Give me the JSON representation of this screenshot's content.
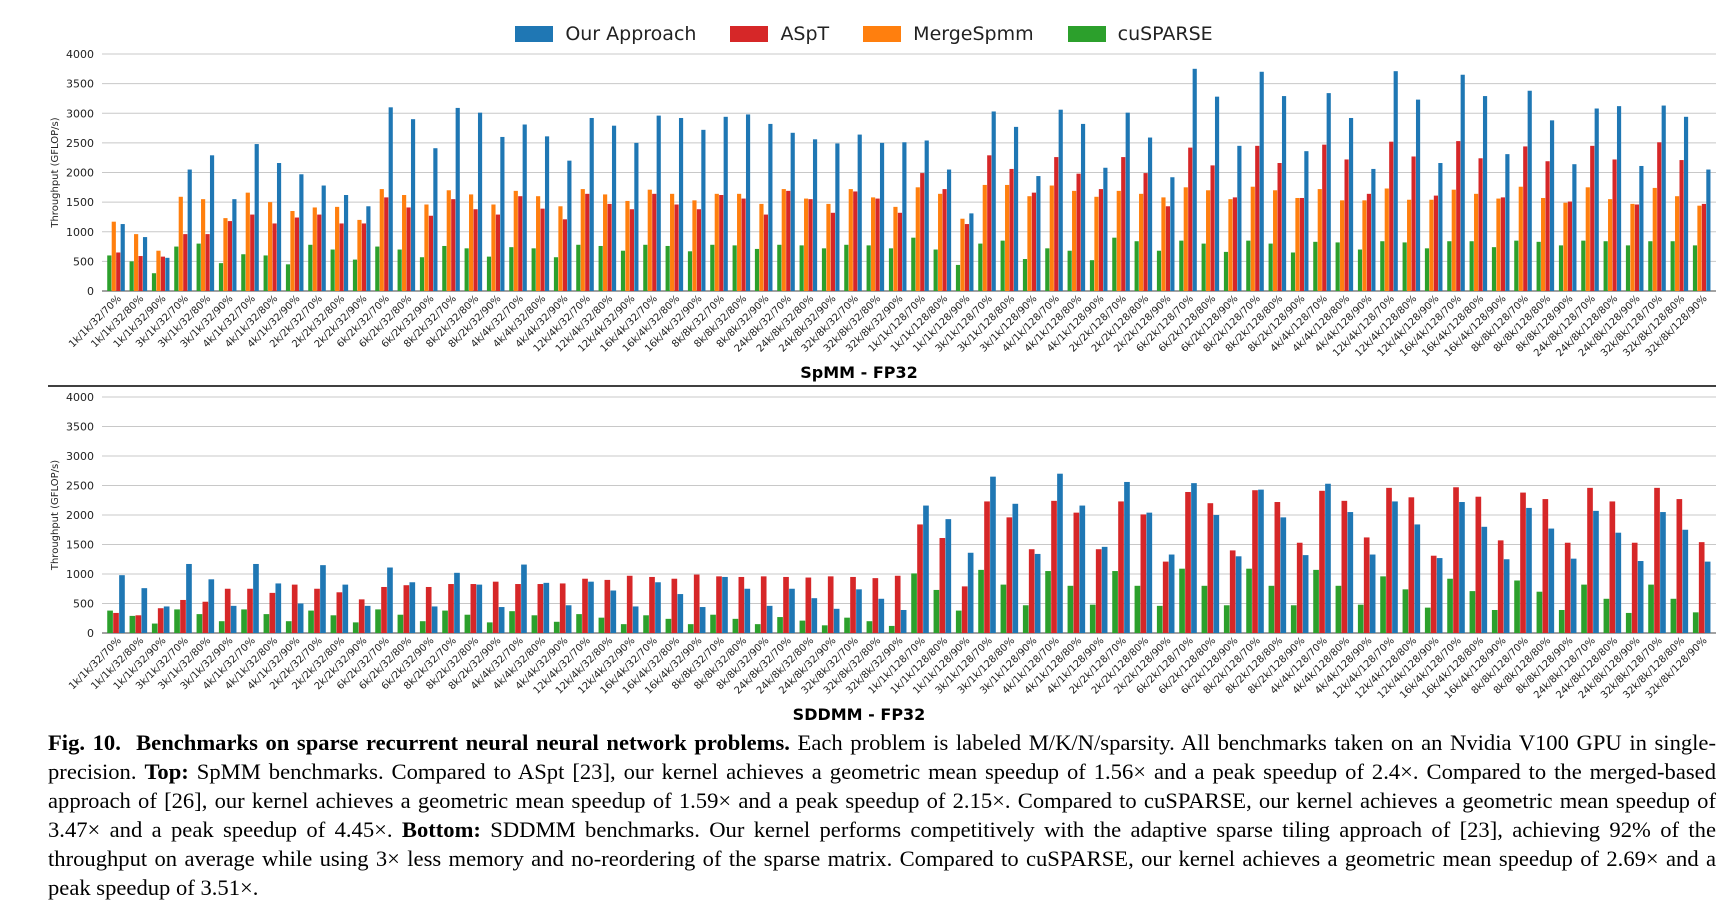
{
  "legend": [
    {
      "name": "Our Approach",
      "color": "#1f77b4"
    },
    {
      "name": "ASpT",
      "color": "#d62728"
    },
    {
      "name": "MergeSpmm",
      "color": "#ff7f0e"
    },
    {
      "name": "cuSPARSE",
      "color": "#2ca02c"
    }
  ],
  "chart_data": [
    {
      "type": "bar",
      "title": "SpMM - FP32",
      "ylabel": "Throughput (GFLOP/s)",
      "ylim": [
        0,
        4000
      ],
      "yticks": [
        0,
        500,
        1000,
        1500,
        2000,
        2500,
        3000,
        3500,
        4000
      ],
      "grid": "horizontal",
      "categories": [
        "1k/1k/32/70%",
        "1k/1k/32/80%",
        "1k/1k/32/90%",
        "3k/1k/32/70%",
        "3k/1k/32/80%",
        "3k/1k/32/90%",
        "4k/1k/32/70%",
        "4k/1k/32/80%",
        "4k/1k/32/90%",
        "2k/2k/32/70%",
        "2k/2k/32/80%",
        "2k/2k/32/90%",
        "6k/2k/32/70%",
        "6k/2k/32/80%",
        "6k/2k/32/90%",
        "8k/2k/32/70%",
        "8k/2k/32/80%",
        "8k/2k/32/90%",
        "4k/4k/32/70%",
        "4k/4k/32/80%",
        "4k/4k/32/90%",
        "12k/4k/32/70%",
        "12k/4k/32/80%",
        "12k/4k/32/90%",
        "16k/4k/32/70%",
        "16k/4k/32/80%",
        "16k/4k/32/90%",
        "8k/8k/32/70%",
        "8k/8k/32/80%",
        "8k/8k/32/90%",
        "24k/8k/32/70%",
        "24k/8k/32/80%",
        "24k/8k/32/90%",
        "32k/8k/32/70%",
        "32k/8k/32/80%",
        "32k/8k/32/90%",
        "1k/1k/128/70%",
        "1k/1k/128/80%",
        "1k/1k/128/90%",
        "3k/1k/128/70%",
        "3k/1k/128/80%",
        "3k/1k/128/90%",
        "4k/1k/128/70%",
        "4k/1k/128/80%",
        "4k/1k/128/90%",
        "2k/2k/128/70%",
        "2k/2k/128/80%",
        "2k/2k/128/90%",
        "6k/2k/128/70%",
        "6k/2k/128/80%",
        "6k/2k/128/90%",
        "8k/2k/128/70%",
        "8k/2k/128/80%",
        "8k/2k/128/90%",
        "4k/4k/128/70%",
        "4k/4k/128/80%",
        "4k/4k/128/90%",
        "12k/4k/128/70%",
        "12k/4k/128/80%",
        "12k/4k/128/90%",
        "16k/4k/128/70%",
        "16k/4k/128/80%",
        "16k/4k/128/90%",
        "8k/8k/128/70%",
        "8k/8k/128/80%",
        "8k/8k/128/90%",
        "24k/8k/128/70%",
        "24k/8k/128/80%",
        "24k/8k/128/90%",
        "32k/8k/128/70%",
        "32k/8k/128/80%",
        "32k/8k/128/90%"
      ],
      "series": [
        {
          "name": "cuSPARSE",
          "values": [
            600,
            500,
            300,
            750,
            800,
            470,
            620,
            600,
            450,
            780,
            700,
            530,
            750,
            700,
            570,
            760,
            720,
            580,
            740,
            720,
            570,
            780,
            760,
            680,
            780,
            760,
            670,
            780,
            770,
            710,
            780,
            770,
            720,
            780,
            770,
            720,
            900,
            700,
            440,
            800,
            850,
            540,
            720,
            680,
            520,
            900,
            840,
            680,
            850,
            800,
            660,
            850,
            800,
            650,
            830,
            820,
            700,
            840,
            820,
            720,
            840,
            840,
            740,
            850,
            830,
            770,
            850,
            840,
            770,
            840,
            840,
            770
          ]
        },
        {
          "name": "MergeSpmm",
          "values": [
            1170,
            960,
            680,
            1590,
            1550,
            1230,
            1660,
            1500,
            1350,
            1410,
            1420,
            1200,
            1720,
            1620,
            1460,
            1700,
            1630,
            1460,
            1690,
            1600,
            1430,
            1720,
            1630,
            1520,
            1710,
            1640,
            1530,
            1640,
            1640,
            1470,
            1720,
            1560,
            1470,
            1720,
            1580,
            1420,
            1750,
            1640,
            1220,
            1790,
            1790,
            1600,
            1780,
            1690,
            1590,
            1690,
            1640,
            1580,
            1750,
            1700,
            1550,
            1760,
            1700,
            1570,
            1720,
            1530,
            1530,
            1730,
            1540,
            1540,
            1710,
            1640,
            1560,
            1760,
            1570,
            1490,
            1750,
            1550,
            1470,
            1740,
            1600,
            1440
          ]
        },
        {
          "name": "ASpT",
          "values": [
            650,
            590,
            580,
            960,
            960,
            1180,
            1290,
            1140,
            1240,
            1290,
            1140,
            1140,
            1580,
            1410,
            1270,
            1550,
            1380,
            1290,
            1600,
            1390,
            1210,
            1640,
            1470,
            1380,
            1640,
            1460,
            1380,
            1620,
            1560,
            1290,
            1690,
            1550,
            1320,
            1680,
            1560,
            1320,
            1990,
            1720,
            1130,
            2290,
            2060,
            1660,
            2260,
            1980,
            1720,
            2260,
            1990,
            1430,
            2420,
            2120,
            1580,
            2450,
            2160,
            1570,
            2470,
            2220,
            1640,
            2520,
            2270,
            1610,
            2530,
            2240,
            1580,
            2440,
            2190,
            1510,
            2450,
            2220,
            1460,
            2510,
            2210,
            1470
          ]
        },
        {
          "name": "Our Approach",
          "values": [
            1130,
            910,
            560,
            2050,
            2290,
            1550,
            2480,
            2160,
            1970,
            1780,
            1620,
            1430,
            3100,
            2900,
            2410,
            3090,
            3010,
            2600,
            2810,
            2610,
            2200,
            2920,
            2790,
            2500,
            2960,
            2920,
            2720,
            2940,
            2980,
            2820,
            2670,
            2560,
            2490,
            2640,
            2500,
            2510,
            2540,
            2050,
            1310,
            3030,
            2770,
            1940,
            3060,
            2820,
            2080,
            3010,
            2590,
            1920,
            3750,
            3280,
            2450,
            3700,
            3290,
            2360,
            3340,
            2920,
            2060,
            3710,
            3230,
            2160,
            3650,
            3290,
            2310,
            3380,
            2880,
            2140,
            3080,
            3120,
            2110,
            3130,
            2940,
            2050
          ]
        }
      ]
    },
    {
      "type": "bar",
      "title": "SDDMM - FP32",
      "ylabel": "Throughput (GFLOP/s)",
      "ylim": [
        0,
        4000
      ],
      "yticks": [
        0,
        500,
        1000,
        1500,
        2000,
        2500,
        3000,
        3500,
        4000
      ],
      "grid": "horizontal",
      "categories": [
        "1k/1k/32/70%",
        "1k/1k/32/80%",
        "1k/1k/32/90%",
        "3k/1k/32/70%",
        "3k/1k/32/80%",
        "3k/1k/32/90%",
        "4k/1k/32/70%",
        "4k/1k/32/80%",
        "4k/1k/32/90%",
        "2k/2k/32/70%",
        "2k/2k/32/80%",
        "2k/2k/32/90%",
        "6k/2k/32/70%",
        "6k/2k/32/80%",
        "6k/2k/32/90%",
        "8k/2k/32/70%",
        "8k/2k/32/80%",
        "8k/2k/32/90%",
        "4k/4k/32/70%",
        "4k/4k/32/80%",
        "4k/4k/32/90%",
        "12k/4k/32/70%",
        "12k/4k/32/80%",
        "12k/4k/32/90%",
        "16k/4k/32/70%",
        "16k/4k/32/80%",
        "16k/4k/32/90%",
        "8k/8k/32/70%",
        "8k/8k/32/80%",
        "8k/8k/32/90%",
        "24k/8k/32/70%",
        "24k/8k/32/80%",
        "24k/8k/32/90%",
        "32k/8k/32/70%",
        "32k/8k/32/80%",
        "32k/8k/32/90%",
        "1k/1k/128/70%",
        "1k/1k/128/80%",
        "1k/1k/128/90%",
        "3k/1k/128/70%",
        "3k/1k/128/80%",
        "3k/1k/128/90%",
        "4k/1k/128/70%",
        "4k/1k/128/80%",
        "4k/1k/128/90%",
        "2k/2k/128/70%",
        "2k/2k/128/80%",
        "2k/2k/128/90%",
        "6k/2k/128/70%",
        "6k/2k/128/80%",
        "6k/2k/128/90%",
        "8k/2k/128/70%",
        "8k/2k/128/80%",
        "8k/2k/128/90%",
        "4k/4k/128/70%",
        "4k/4k/128/80%",
        "4k/4k/128/90%",
        "12k/4k/128/70%",
        "12k/4k/128/80%",
        "12k/4k/128/90%",
        "16k/4k/128/70%",
        "16k/4k/128/80%",
        "16k/4k/128/90%",
        "8k/8k/128/70%",
        "8k/8k/128/80%",
        "8k/8k/128/90%",
        "24k/8k/128/70%",
        "24k/8k/128/80%",
        "24k/8k/128/90%",
        "32k/8k/128/70%",
        "32k/8k/128/80%",
        "32k/8k/128/90%"
      ],
      "series": [
        {
          "name": "cuSPARSE",
          "values": [
            380,
            290,
            160,
            400,
            320,
            200,
            400,
            320,
            200,
            380,
            300,
            180,
            400,
            310,
            200,
            380,
            310,
            180,
            370,
            300,
            190,
            320,
            260,
            150,
            300,
            240,
            150,
            310,
            240,
            150,
            270,
            210,
            130,
            260,
            200,
            120,
            1010,
            730,
            380,
            1070,
            820,
            470,
            1050,
            800,
            480,
            1050,
            800,
            460,
            1090,
            800,
            470,
            1090,
            800,
            470,
            1070,
            800,
            480,
            960,
            740,
            430,
            920,
            710,
            390,
            890,
            700,
            390,
            820,
            580,
            340,
            820,
            580,
            350
          ]
        },
        {
          "name": "ASpT",
          "values": [
            340,
            300,
            420,
            560,
            530,
            750,
            750,
            680,
            820,
            750,
            690,
            570,
            780,
            810,
            780,
            830,
            830,
            870,
            830,
            830,
            840,
            920,
            900,
            970,
            950,
            920,
            990,
            960,
            950,
            960,
            950,
            940,
            960,
            950,
            930,
            970,
            1840,
            1610,
            790,
            2230,
            1960,
            1420,
            2240,
            2040,
            1420,
            2230,
            2010,
            1210,
            2390,
            2200,
            1400,
            2420,
            2220,
            1530,
            2410,
            2240,
            1620,
            2460,
            2300,
            1310,
            2470,
            2310,
            1570,
            2380,
            2270,
            1530,
            2460,
            2230,
            1530,
            2460,
            2270,
            1540
          ]
        },
        {
          "name": "Our Approach",
          "values": [
            980,
            760,
            450,
            1170,
            910,
            460,
            1170,
            840,
            500,
            1150,
            820,
            460,
            1110,
            860,
            450,
            1020,
            820,
            440,
            1160,
            850,
            470,
            870,
            720,
            450,
            860,
            660,
            440,
            950,
            750,
            460,
            750,
            590,
            410,
            740,
            580,
            390,
            2160,
            1930,
            1360,
            2650,
            2190,
            1340,
            2700,
            2160,
            1460,
            2560,
            2040,
            1330,
            2540,
            2000,
            1300,
            2430,
            1960,
            1320,
            2530,
            2050,
            1330,
            2230,
            1840,
            1270,
            2220,
            1800,
            1250,
            2120,
            1770,
            1260,
            2070,
            1700,
            1220,
            2050,
            1750,
            1210
          ]
        }
      ]
    }
  ],
  "caption": {
    "fig_label": "Fig. 10.",
    "bold_title": "Benchmarks on sparse recurrent neural neural network problems.",
    "text1": " Each problem is labeled M/K/N/sparsity. All benchmarks taken on an Nvidia V100 GPU in single-precision. ",
    "top_label": "Top:",
    "text2": " SpMM benchmarks. Compared to ASpt [23], our kernel achieves a geometric mean speedup of 1.56× and a peak speedup of 2.4×. Compared to the merged-based approach of [26], our kernel achieves a geometric mean speedup of 1.59× and a peak speedup of 2.15×. Compared to cuSPARSE, our kernel achieves a geometric mean speedup of 3.47× and a peak speedup of 4.45×. ",
    "bottom_label": "Bottom:",
    "text3": " SDDMM benchmarks. Our kernel performs competitively with the adaptive sparse tiling approach of [23], achieving 92% of the throughput on average while using 3× less memory and no-reordering of the sparse matrix. Compared to cuSPARSE, our kernel achieves a geometric mean speedup of 2.69× and a peak speedup of 3.51×."
  }
}
